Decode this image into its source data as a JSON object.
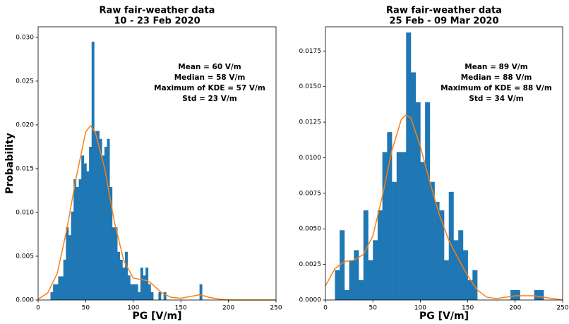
{
  "chart_data": [
    {
      "type": "histogram",
      "title": [
        "Raw fair-weather data",
        "10 - 23 Feb 2020"
      ],
      "xlabel": "PG [V/m]",
      "ylabel": "Probability",
      "annotation": [
        "Mean = 60 V/m",
        "Median = 58 V/m",
        "Maximum of KDE = 57 V/m",
        "Std = 23 V/m"
      ],
      "bins": [
        13,
        15.7,
        18.4,
        21.1,
        23.8,
        26.5,
        29.2,
        31.9,
        34.6,
        37.3,
        40,
        42.7,
        45.4,
        48.1,
        50.8,
        53.5,
        56.2,
        58.9,
        61.6,
        64.3,
        67,
        69.7,
        72.4,
        75.1,
        77.8,
        80.5,
        83.2,
        85.9,
        88.6,
        91.3,
        94,
        96.7,
        99.4,
        102.1,
        104.8,
        107.5,
        110.2,
        112.9,
        115.6,
        118.3,
        121,
        123.7,
        126.4,
        129.1,
        131.8,
        134.5,
        137.2,
        139.9,
        142.6,
        145.3,
        148,
        150.7,
        153.4,
        156.1,
        158.8,
        161.5,
        164.2,
        166.9,
        169.6,
        172.3,
        175
      ],
      "values": [
        0.0009,
        0.0018,
        0.0018,
        0.0027,
        0.0027,
        0.0046,
        0.0083,
        0.0074,
        0.0101,
        0.0138,
        0.0129,
        0.0138,
        0.0165,
        0.0156,
        0.0147,
        0.0175,
        0.0295,
        0.0193,
        0.0193,
        0.0184,
        0.0165,
        0.0175,
        0.0184,
        0.0129,
        0.0083,
        0.0083,
        0.0055,
        0.0046,
        0.0037,
        0.0055,
        0.0028,
        0.0018,
        0.0018,
        0.0018,
        0.0009,
        0.0037,
        0.0028,
        0.0037,
        0.0018,
        0.0009,
        0,
        0,
        0.0009,
        0,
        0.0009,
        0,
        0,
        0,
        0,
        0,
        0,
        0,
        0,
        0,
        0,
        0,
        0,
        0,
        0.0018,
        0
      ],
      "color": "#1f77b4",
      "kde": {
        "color": "#ff7f0e",
        "x": [
          0,
          10,
          20,
          30,
          40,
          50,
          55,
          60,
          70,
          80,
          90,
          100,
          110,
          115,
          120,
          130,
          140,
          150,
          160,
          170,
          180,
          190,
          200,
          250
        ],
        "values": [
          0.0001,
          0.0008,
          0.003,
          0.008,
          0.014,
          0.0192,
          0.0199,
          0.0192,
          0.015,
          0.009,
          0.0045,
          0.0025,
          0.0023,
          0.0022,
          0.0018,
          0.0008,
          0.0003,
          0.0002,
          0.0004,
          0.0006,
          0.0003,
          0.0001,
          0,
          0
        ]
      },
      "xlim": [
        0,
        250
      ],
      "xticks": [
        0,
        50,
        100,
        150,
        200,
        250
      ],
      "ylim": [
        0,
        0.0312
      ],
      "yticks": [
        {
          "value": 0,
          "label": "0.000"
        },
        {
          "value": 0.005,
          "label": "0.005"
        },
        {
          "value": 0.01,
          "label": "0.010"
        },
        {
          "value": 0.015,
          "label": "0.015"
        },
        {
          "value": 0.02,
          "label": "0.020"
        },
        {
          "value": 0.025,
          "label": "0.025"
        },
        {
          "value": 0.03,
          "label": "0.030"
        }
      ]
    },
    {
      "type": "histogram",
      "title": [
        "Raw fair-weather data",
        "25 Feb - 09 Mar 2020"
      ],
      "xlabel": "PG [V/m]",
      "annotation": [
        "Mean = 89 V/m",
        "Median = 88 V/m",
        "Maximum of KDE = 88 V/m",
        "Std = 34 V/m"
      ],
      "bins": [
        10,
        15,
        20,
        25,
        30,
        35,
        40,
        45,
        50,
        55,
        60,
        65,
        70,
        75,
        80,
        85,
        90,
        95,
        100,
        105,
        110,
        115,
        120,
        125,
        130,
        135,
        140,
        145,
        150,
        155,
        160,
        165,
        170,
        175,
        180,
        185,
        190,
        195,
        200,
        205,
        210,
        215,
        220,
        225,
        230,
        235
      ],
      "values": [
        0.0021,
        0.0049,
        0.0007,
        0.0028,
        0.0035,
        0.0014,
        0.0063,
        0.0028,
        0.0042,
        0.0063,
        0.0104,
        0.0118,
        0.0083,
        0.0104,
        0.0104,
        0.0188,
        0.016,
        0.0139,
        0.0097,
        0.0139,
        0.0083,
        0.0069,
        0.0063,
        0.0028,
        0.0076,
        0.0042,
        0.0049,
        0.0035,
        0.0014,
        0.0021,
        0,
        0,
        0,
        0,
        0,
        0,
        0,
        0.0007,
        0.0007,
        0,
        0,
        0,
        0.0007,
        0.0007,
        0
      ],
      "color": "#1f77b4",
      "kde": {
        "color": "#ff7f0e",
        "x": [
          0,
          10,
          20,
          30,
          40,
          50,
          60,
          70,
          80,
          85,
          90,
          100,
          110,
          120,
          130,
          140,
          150,
          160,
          170,
          180,
          190,
          200,
          210,
          220,
          230,
          240,
          250
        ],
        "values": [
          0.001,
          0.0022,
          0.0027,
          0.0028,
          0.0032,
          0.0045,
          0.0073,
          0.0105,
          0.0127,
          0.013,
          0.0128,
          0.0108,
          0.0083,
          0.006,
          0.0042,
          0.0029,
          0.0017,
          0.0007,
          0.0002,
          0.0001,
          0.0002,
          0.0003,
          0.0003,
          0.0003,
          0.0002,
          0.0001,
          0
        ]
      },
      "xlim": [
        0,
        250
      ],
      "xticks": [
        0,
        50,
        100,
        150,
        200,
        250
      ],
      "ylim": [
        0,
        0.0192
      ],
      "yticks": [
        {
          "value": 0,
          "label": "0.0000"
        },
        {
          "value": 0.0025,
          "label": "0.0025"
        },
        {
          "value": 0.005,
          "label": "0.0050"
        },
        {
          "value": 0.0075,
          "label": "0.0075"
        },
        {
          "value": 0.01,
          "label": "0.0100"
        },
        {
          "value": 0.0125,
          "label": "0.0125"
        },
        {
          "value": 0.015,
          "label": "0.0150"
        },
        {
          "value": 0.0175,
          "label": "0.0175"
        }
      ]
    }
  ]
}
